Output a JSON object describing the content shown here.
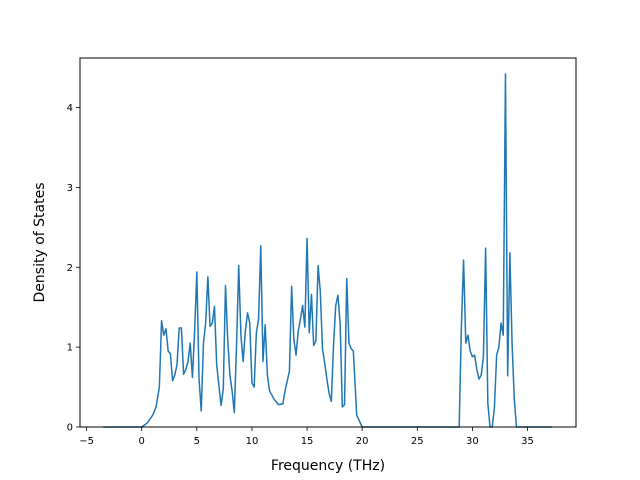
{
  "chart_data": {
    "type": "line",
    "title": "",
    "xlabel": "Frequency (THz)",
    "ylabel": "Density of States",
    "xlim": [
      -5.6,
      39.4
    ],
    "ylim": [
      0,
      4.62
    ],
    "xticks": [
      -5,
      0,
      5,
      10,
      15,
      20,
      25,
      30,
      35
    ],
    "yticks": [
      0,
      1,
      2,
      3,
      4
    ],
    "grid": false,
    "legend": "none",
    "series": [
      {
        "color": "#1f77b4",
        "x": [
          -3.5,
          -2.5,
          -1.5,
          -0.5,
          0.0,
          0.5,
          1.0,
          1.3,
          1.6,
          1.8,
          2.0,
          2.2,
          2.4,
          2.6,
          2.8,
          3.0,
          3.2,
          3.4,
          3.6,
          3.8,
          4.0,
          4.2,
          4.4,
          4.6,
          4.8,
          5.0,
          5.2,
          5.4,
          5.6,
          5.8,
          6.0,
          6.2,
          6.4,
          6.6,
          6.8,
          7.0,
          7.2,
          7.4,
          7.6,
          7.8,
          8.0,
          8.2,
          8.4,
          8.6,
          8.8,
          9.0,
          9.2,
          9.4,
          9.6,
          9.8,
          10.0,
          10.2,
          10.4,
          10.6,
          10.8,
          11.0,
          11.2,
          11.4,
          11.6,
          11.8,
          12.0,
          12.4,
          12.8,
          13.0,
          13.4,
          13.6,
          13.8,
          14.0,
          14.2,
          14.4,
          14.6,
          14.8,
          15.0,
          15.2,
          15.4,
          15.6,
          15.8,
          16.0,
          16.2,
          16.4,
          16.6,
          16.8,
          17.0,
          17.2,
          17.4,
          17.6,
          17.8,
          18.0,
          18.2,
          18.4,
          18.6,
          18.8,
          19.0,
          19.2,
          19.5,
          20.0,
          25.0,
          28.0,
          28.5,
          28.8,
          29.0,
          29.2,
          29.4,
          29.6,
          29.8,
          30.0,
          30.2,
          30.4,
          30.6,
          30.8,
          31.0,
          31.2,
          31.4,
          31.6,
          31.8,
          32.0,
          32.2,
          32.4,
          32.6,
          32.8,
          33.0,
          33.2,
          33.4,
          33.6,
          33.8,
          34.0,
          34.2,
          34.5,
          35.0,
          37.2
        ],
        "values": [
          0,
          0,
          0,
          0,
          0,
          0.05,
          0.15,
          0.25,
          0.5,
          1.33,
          1.15,
          1.23,
          0.95,
          0.92,
          0.58,
          0.65,
          0.78,
          1.24,
          1.24,
          0.66,
          0.72,
          0.82,
          1.05,
          0.62,
          1.2,
          1.94,
          0.6,
          0.2,
          1.05,
          1.3,
          1.88,
          1.26,
          1.3,
          1.51,
          0.78,
          0.52,
          0.27,
          0.48,
          1.77,
          1.1,
          0.65,
          0.45,
          0.18,
          1.02,
          2.02,
          1.15,
          0.82,
          1.2,
          1.43,
          1.3,
          0.55,
          0.5,
          1.18,
          1.35,
          2.27,
          0.82,
          1.28,
          0.65,
          0.45,
          0.4,
          0.35,
          0.28,
          0.29,
          0.45,
          0.7,
          1.76,
          1.1,
          0.9,
          1.2,
          1.35,
          1.52,
          1.25,
          2.36,
          1.18,
          1.66,
          1.02,
          1.08,
          2.02,
          1.7,
          0.98,
          0.8,
          0.6,
          0.42,
          0.32,
          1.02,
          1.52,
          1.65,
          1.3,
          0.25,
          0.28,
          1.86,
          1.05,
          0.98,
          0.95,
          0.15,
          0,
          0,
          0,
          0,
          0,
          1.25,
          2.09,
          1.05,
          1.15,
          0.95,
          0.88,
          0.9,
          0.72,
          0.6,
          0.65,
          0.88,
          2.24,
          0.3,
          0,
          0,
          0.25,
          0.9,
          1.0,
          1.3,
          1.15,
          4.42,
          0.64,
          2.18,
          1.05,
          0.35,
          0,
          0,
          0,
          0,
          0
        ]
      }
    ]
  }
}
